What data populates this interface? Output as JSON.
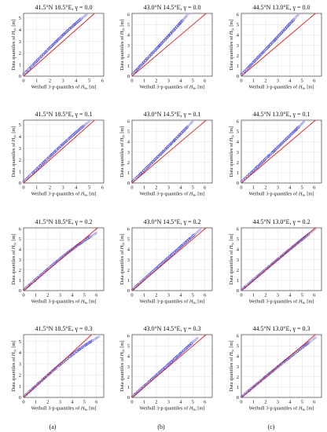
{
  "columns": [
    "(a)",
    "(b)",
    "(c)"
  ],
  "chart_data": [
    {
      "type": "scatter",
      "title": "41.5°N 18.5°E, γ = 0.0",
      "xlabel": "Weibull 3-p quantiles of Hs, [m]",
      "ylabel": "Data quantiles of Hs, [m]",
      "xlim": [
        0,
        6.1
      ],
      "ylim": [
        0,
        5.4
      ],
      "xticks": [
        0,
        1,
        2,
        3,
        4,
        5,
        6
      ],
      "yticks": [
        0,
        1,
        2,
        3,
        4,
        5
      ],
      "reference_line": "y = x",
      "series": [
        {
          "tail_end": [
            4.8,
            5.3
          ],
          "mid_slope": 1.16,
          "start": [
            0.05,
            0.2
          ]
        }
      ]
    },
    {
      "type": "scatter",
      "title": "43.0°N 14.5°E, γ = 0.0",
      "xlabel": "Weibull 3-p quantiles of Hs, [m]",
      "ylabel": "Data quantiles of Hs, [m]",
      "xlim": [
        0,
        6.6
      ],
      "ylim": [
        0,
        6.1
      ],
      "xticks": [
        0,
        1,
        2,
        3,
        4,
        5,
        6
      ],
      "yticks": [
        0,
        1,
        2,
        3,
        4,
        5,
        6
      ],
      "reference_line": "y = x",
      "series": [
        {
          "tail_end": [
            4.6,
            6.0
          ],
          "mid_slope": 1.25,
          "start": [
            0.05,
            0.2
          ]
        }
      ]
    },
    {
      "type": "scatter",
      "title": "44.5°N 13.0°E, γ = 0.0",
      "xlabel": "Weibull 3-p quantiles of Hs, [m]",
      "ylabel": "Data quantiles of Hs, [m]",
      "xlim": [
        0,
        6.6
      ],
      "ylim": [
        0,
        6.1
      ],
      "xticks": [
        0,
        1,
        2,
        3,
        4,
        5,
        6
      ],
      "yticks": [
        0,
        1,
        2,
        3,
        4,
        5,
        6
      ],
      "reference_line": "y = x",
      "series": [
        {
          "tail_end": [
            4.7,
            6.0
          ],
          "mid_slope": 1.22,
          "start": [
            0.05,
            0.2
          ]
        }
      ]
    },
    {
      "type": "scatter",
      "title": "41.5°N 18.5°E, γ = 0.1",
      "xlabel": "Weibull 3-p quantiles of Hs, [m]",
      "ylabel": "Data quantiles of Hs, [m]",
      "xlim": [
        0,
        6.1
      ],
      "ylim": [
        0,
        5.4
      ],
      "xticks": [
        0,
        1,
        2,
        3,
        4,
        5,
        6
      ],
      "yticks": [
        0,
        1,
        2,
        3,
        4,
        5
      ],
      "reference_line": "y = x",
      "series": [
        {
          "tail_end": [
            5.0,
            5.3
          ],
          "mid_slope": 1.1,
          "start": [
            0.05,
            0.15
          ]
        }
      ]
    },
    {
      "type": "scatter",
      "title": "43.0°N 14.5°E, γ = 0.1",
      "xlabel": "Weibull 3-p quantiles of Hs, [m]",
      "ylabel": "Data quantiles of Hs, [m]",
      "xlim": [
        0,
        6.6
      ],
      "ylim": [
        0,
        6.1
      ],
      "xticks": [
        0,
        1,
        2,
        3,
        4,
        5,
        6
      ],
      "yticks": [
        0,
        1,
        2,
        3,
        4,
        5,
        6
      ],
      "reference_line": "y = x",
      "series": [
        {
          "tail_end": [
            5.0,
            6.0
          ],
          "mid_slope": 1.15,
          "start": [
            0.05,
            0.15
          ]
        }
      ]
    },
    {
      "type": "scatter",
      "title": "44.5°N 13.0°E, γ = 0.1",
      "xlabel": "Weibull 3-p quantiles of Hs, [m]",
      "ylabel": "Data quantiles of Hs, [m]",
      "xlim": [
        0,
        6.6
      ],
      "ylim": [
        0,
        6.1
      ],
      "xticks": [
        0,
        1,
        2,
        3,
        4,
        5,
        6
      ],
      "yticks": [
        0,
        1,
        2,
        3,
        4,
        5,
        6
      ],
      "reference_line": "y = x",
      "series": [
        {
          "tail_end": [
            5.2,
            6.0
          ],
          "mid_slope": 1.12,
          "start": [
            0.05,
            0.15
          ]
        }
      ]
    },
    {
      "type": "scatter",
      "title": "41.5°N 18.5°E, γ = 0.2",
      "xlabel": "Weibull 3-p quantiles of Hs, [m]",
      "ylabel": "Data quantiles of Hs, [m]",
      "xlim": [
        0,
        6.6
      ],
      "ylim": [
        0,
        6.1
      ],
      "xticks": [
        0,
        1,
        2,
        3,
        4,
        5,
        6
      ],
      "yticks": [
        0,
        1,
        2,
        3,
        4,
        5,
        6
      ],
      "reference_line": "y = x",
      "series": [
        {
          "tail_end": [
            6.0,
            5.6
          ],
          "mid_slope": 1.03,
          "start": [
            0.05,
            0.1
          ]
        }
      ]
    },
    {
      "type": "scatter",
      "title": "43.0°N 14.5°E, γ = 0.2",
      "xlabel": "Weibull 3-p quantiles of Hs, [m]",
      "ylabel": "Data quantiles of Hs, [m]",
      "xlim": [
        0,
        6.6
      ],
      "ylim": [
        0,
        6.1
      ],
      "xticks": [
        0,
        1,
        2,
        3,
        4,
        5,
        6
      ],
      "yticks": [
        0,
        1,
        2,
        3,
        4,
        5,
        6
      ],
      "reference_line": "y = x",
      "series": [
        {
          "tail_end": [
            5.6,
            5.9
          ],
          "mid_slope": 1.06,
          "start": [
            0.05,
            0.1
          ]
        }
      ]
    },
    {
      "type": "scatter",
      "title": "44.5°N 13.0°E, γ = 0.2",
      "xlabel": "Weibull 3-p quantiles of Hs, [m]",
      "ylabel": "Data quantiles of Hs, [m]",
      "xlim": [
        0,
        6.6
      ],
      "ylim": [
        0,
        6.1
      ],
      "xticks": [
        0,
        1,
        2,
        3,
        4,
        5,
        6
      ],
      "yticks": [
        0,
        1,
        2,
        3,
        4,
        5,
        6
      ],
      "reference_line": "y = x",
      "series": [
        {
          "tail_end": [
            6.1,
            6.0
          ],
          "mid_slope": 1.0,
          "start": [
            0.05,
            0.1
          ]
        }
      ]
    },
    {
      "type": "scatter",
      "title": "41.5°N 18.5°E, γ = 0.3",
      "xlabel": "Weibull 3-p quantiles of Hs, [m]",
      "ylabel": "Data quantiles of Hs, [m]",
      "xlim": [
        0,
        6.6
      ],
      "ylim": [
        0,
        5.6
      ],
      "xticks": [
        0,
        1,
        2,
        3,
        4,
        5,
        6
      ],
      "yticks": [
        0,
        1,
        2,
        3,
        4,
        5
      ],
      "reference_line": "y = x",
      "series": [
        {
          "tail_end": [
            6.2,
            5.4
          ],
          "mid_slope": 0.98,
          "start": [
            0.05,
            0.1
          ]
        }
      ]
    },
    {
      "type": "scatter",
      "title": "43.0°N 14.5°E, γ = 0.3",
      "xlabel": "Weibull 3-p quantiles of Hs, [m]",
      "ylabel": "Data quantiles of Hs, [m]",
      "xlim": [
        0,
        6.6
      ],
      "ylim": [
        0,
        6.1
      ],
      "xticks": [
        0,
        1,
        2,
        3,
        4,
        5,
        6
      ],
      "yticks": [
        0,
        1,
        2,
        3,
        4,
        5,
        6
      ],
      "reference_line": "y = x",
      "series": [
        {
          "tail_end": [
            5.4,
            5.8
          ],
          "mid_slope": 1.05,
          "start": [
            0.05,
            0.1
          ]
        }
      ]
    },
    {
      "type": "scatter",
      "title": "44.5°N 13.0°E, γ = 0.3",
      "xlabel": "Weibull 3-p quantiles of Hs, [m]",
      "ylabel": "Data quantiles of Hs, [m]",
      "xlim": [
        0,
        6.6
      ],
      "ylim": [
        0,
        6.1
      ],
      "xticks": [
        0,
        1,
        2,
        3,
        4,
        5,
        6
      ],
      "yticks": [
        0,
        1,
        2,
        3,
        4,
        5,
        6
      ],
      "reference_line": "y = x",
      "series": [
        {
          "tail_end": [
            6.1,
            5.8
          ],
          "mid_slope": 0.98,
          "start": [
            0.05,
            0.1
          ]
        }
      ]
    }
  ]
}
